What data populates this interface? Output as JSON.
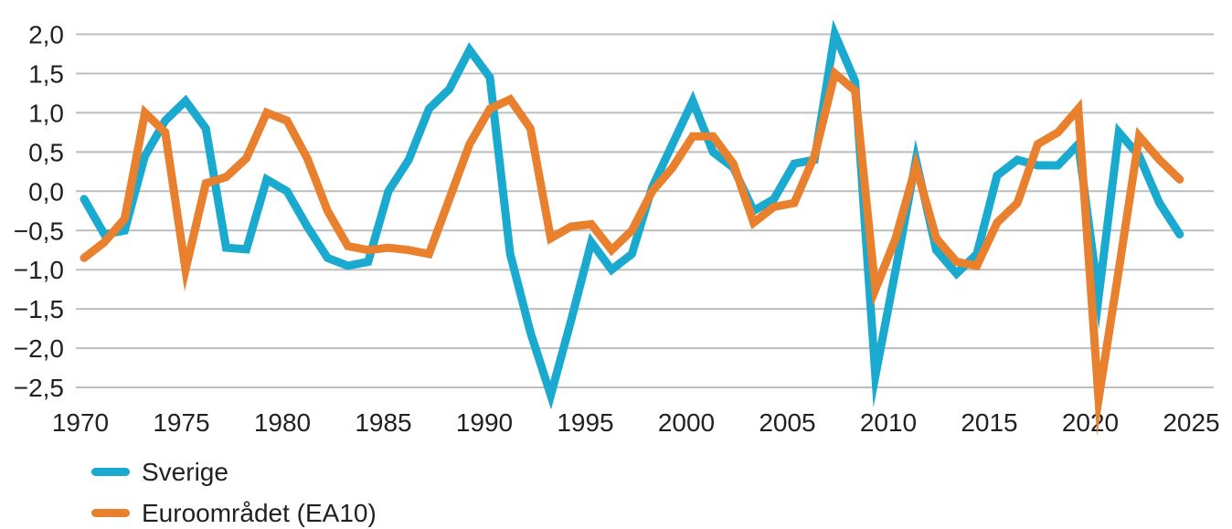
{
  "chart_data": {
    "type": "line",
    "title": "",
    "xlabel": "",
    "ylabel": "",
    "grid": true,
    "legend_position": "bottom-left",
    "background_color": "#ffffff",
    "grid_color": "#bdbdbd",
    "text_color": "#231f20",
    "decimal_style": "comma",
    "ylim": [
      -2.5,
      2.0
    ],
    "xlim": [
      1970,
      2025
    ],
    "y_ticks": [
      {
        "value": 2.0,
        "label": "2,0"
      },
      {
        "value": 1.5,
        "label": "1,5"
      },
      {
        "value": 1.0,
        "label": "1,0"
      },
      {
        "value": 0.5,
        "label": "0,5"
      },
      {
        "value": 0.0,
        "label": "0,0"
      },
      {
        "value": -0.5,
        "label": "−0,5"
      },
      {
        "value": -1.0,
        "label": "−1,0"
      },
      {
        "value": -1.5,
        "label": "−1,5"
      },
      {
        "value": -2.0,
        "label": "−2,0"
      },
      {
        "value": -2.5,
        "label": "−2,5"
      }
    ],
    "x_ticks": [
      {
        "year": 1970,
        "label": "1970"
      },
      {
        "year": 1975,
        "label": "1975"
      },
      {
        "year": 1980,
        "label": "1980"
      },
      {
        "year": 1985,
        "label": "1985"
      },
      {
        "year": 1990,
        "label": "1990"
      },
      {
        "year": 1995,
        "label": "1995"
      },
      {
        "year": 2000,
        "label": "2000"
      },
      {
        "year": 2005,
        "label": "2005"
      },
      {
        "year": 2010,
        "label": "2010"
      },
      {
        "year": 2015,
        "label": "2015"
      },
      {
        "year": 2020,
        "label": "2020"
      },
      {
        "year": 2025,
        "label": "2025"
      }
    ],
    "years": [
      1970,
      1971,
      1972,
      1973,
      1974,
      1975,
      1976,
      1977,
      1978,
      1979,
      1980,
      1981,
      1982,
      1983,
      1984,
      1985,
      1986,
      1987,
      1988,
      1989,
      1990,
      1991,
      1992,
      1993,
      1994,
      1995,
      1996,
      1997,
      1998,
      1999,
      2000,
      2001,
      2002,
      2003,
      2004,
      2005,
      2006,
      2007,
      2008,
      2009,
      2010,
      2011,
      2012,
      2013,
      2014,
      2015,
      2016,
      2017,
      2018,
      2019,
      2020,
      2021,
      2022,
      2023,
      2024
    ],
    "series": [
      {
        "name": "Sverige",
        "color": "#1AA9CF",
        "values": [
          -0.1,
          -0.55,
          -0.5,
          0.45,
          0.9,
          1.15,
          0.8,
          -0.72,
          -0.74,
          0.15,
          0.0,
          -0.45,
          -0.85,
          -0.95,
          -0.9,
          0.0,
          0.4,
          1.05,
          1.3,
          1.8,
          1.45,
          -0.8,
          -1.8,
          -2.6,
          -1.65,
          -0.65,
          -1.0,
          -0.8,
          0.05,
          0.6,
          1.15,
          0.5,
          0.3,
          -0.25,
          -0.1,
          0.35,
          0.4,
          2.0,
          1.4,
          -2.35,
          -1.0,
          0.4,
          -0.75,
          -1.05,
          -0.8,
          0.2,
          0.4,
          0.33,
          0.33,
          0.6,
          -1.35,
          0.75,
          0.45,
          -0.15,
          -0.55
        ]
      },
      {
        "name": "Euroområdet (EA10)",
        "color": "#E8802E",
        "values": [
          -0.85,
          -0.65,
          -0.35,
          1.0,
          0.75,
          -1.0,
          0.1,
          0.18,
          0.42,
          1.0,
          0.9,
          0.42,
          -0.25,
          -0.7,
          -0.75,
          -0.72,
          -0.75,
          -0.8,
          -0.1,
          0.6,
          1.05,
          1.17,
          0.8,
          -0.6,
          -0.45,
          -0.42,
          -0.75,
          -0.5,
          0.0,
          0.3,
          0.7,
          0.7,
          0.35,
          -0.4,
          -0.2,
          -0.15,
          0.45,
          1.5,
          1.28,
          -1.25,
          -0.6,
          0.32,
          -0.6,
          -0.9,
          -0.95,
          -0.4,
          -0.15,
          0.6,
          0.75,
          1.05,
          -2.65,
          -1.0,
          0.7,
          0.4,
          0.15
        ]
      }
    ]
  },
  "legend": {
    "items": [
      {
        "label": "Sverige"
      },
      {
        "label": "Euroområdet (EA10)"
      }
    ]
  }
}
